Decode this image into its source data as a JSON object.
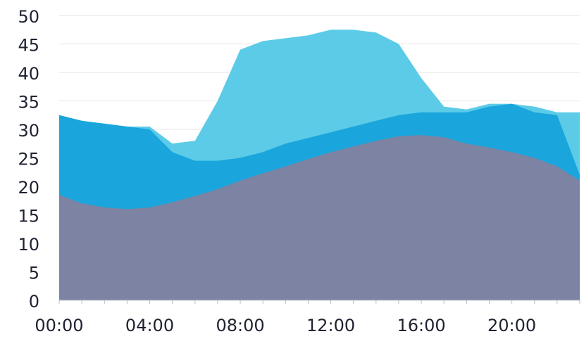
{
  "chart_data": {
    "type": "area",
    "stacked": false,
    "x": [
      "00:00",
      "01:00",
      "02:00",
      "03:00",
      "04:00",
      "05:00",
      "06:00",
      "07:00",
      "08:00",
      "09:00",
      "10:00",
      "11:00",
      "12:00",
      "13:00",
      "14:00",
      "15:00",
      "16:00",
      "17:00",
      "18:00",
      "19:00",
      "20:00",
      "21:00",
      "22:00",
      "23:00"
    ],
    "x_ticks": [
      "00:00",
      "04:00",
      "08:00",
      "12:00",
      "16:00",
      "20:00"
    ],
    "ylim": [
      0,
      50
    ],
    "y_ticks": [
      0,
      5,
      10,
      15,
      20,
      25,
      30,
      35,
      40,
      45,
      50
    ],
    "grid": true,
    "title": "",
    "xlabel": "",
    "ylabel": "",
    "series": [
      {
        "color": "#5ccbe8",
        "values": [
          32.5,
          31.5,
          31,
          30.5,
          30.5,
          27.5,
          28,
          35,
          44,
          45.5,
          46,
          46.5,
          47.5,
          47.5,
          47,
          45,
          39,
          34,
          33.5,
          34.5,
          34.5,
          34,
          33,
          33
        ]
      },
      {
        "color": "#1aa6dc",
        "values": [
          32.5,
          31.5,
          31,
          30.5,
          30,
          26,
          24.5,
          24.5,
          25,
          26,
          27.5,
          28.5,
          29.5,
          30.5,
          31.5,
          32.5,
          33,
          33,
          33,
          34,
          34.5,
          33,
          32.5,
          22
        ]
      },
      {
        "color": "#7c83a3",
        "values": [
          18.5,
          17,
          16.3,
          16,
          16.3,
          17.2,
          18.3,
          19.5,
          21,
          22.3,
          23.5,
          24.8,
          26,
          27,
          28,
          28.8,
          29,
          28.6,
          27.5,
          26.8,
          26,
          25,
          23.5,
          21
        ]
      }
    ]
  }
}
